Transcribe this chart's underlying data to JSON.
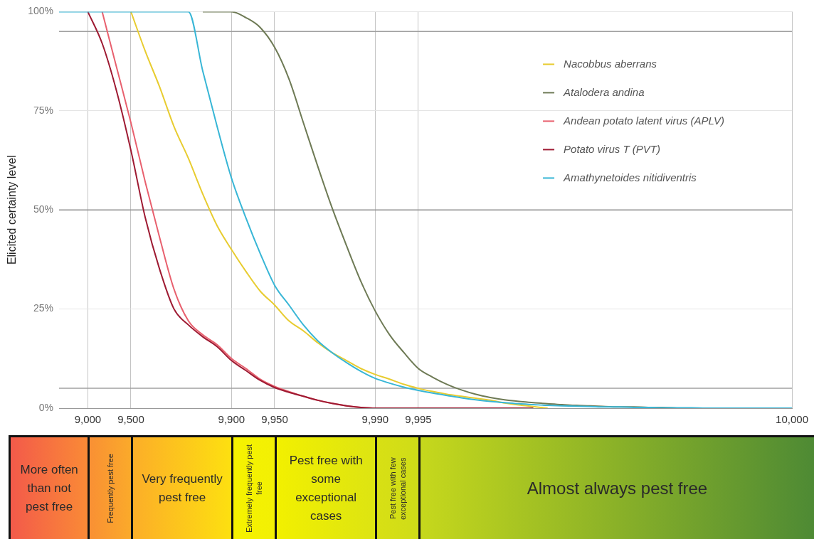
{
  "chart_data": {
    "type": "line",
    "ylabel": "Elicited certainty level",
    "categories": [
      null,
      null,
      "9,000",
      null,
      null,
      "9,500",
      null,
      null,
      null,
      null,
      null,
      null,
      "9,900",
      null,
      null,
      "9,950",
      null,
      null,
      null,
      null,
      null,
      null,
      "9,990",
      null,
      null,
      "9,995",
      null,
      null,
      null,
      null,
      null,
      null,
      null,
      null,
      null,
      null,
      null,
      null,
      null,
      null,
      null,
      null,
      null,
      null,
      null,
      null,
      null,
      null,
      null,
      null,
      null,
      "10,000"
    ],
    "ylim": [
      0,
      100
    ],
    "yticks": [
      {
        "value": 0,
        "label": "0%"
      },
      {
        "value": 25,
        "label": "25%"
      },
      {
        "value": 50,
        "label": "50%"
      },
      {
        "value": 75,
        "label": "75%"
      },
      {
        "value": 100,
        "label": "100%"
      }
    ],
    "grid": true,
    "legend": "top right",
    "marker": "none",
    "line_style": "solid",
    "ref_lines": [
      {
        "axis": "y",
        "value": 95,
        "color": "#a0a0a0"
      },
      {
        "axis": "y",
        "value": 50,
        "color": "#909090"
      },
      {
        "axis": "y",
        "value": 5,
        "color": "#a0a0a0"
      }
    ],
    "annotations": [
      "More often than not pest free",
      "Frequently pest free",
      "Very frequently pest free",
      "Extremely frequently pest free",
      "Pest free with some exceptional cases",
      "Pest free with few exceptional cases",
      "Almost always pest free"
    ],
    "series": [
      {
        "name": "Nacobbus aberrans",
        "color": "#e8cc30",
        "values": [
          null,
          null,
          null,
          null,
          null,
          100,
          90,
          81,
          71,
          63,
          54,
          46,
          40,
          34.5,
          29.5,
          26,
          22,
          19.5,
          16.5,
          14,
          12,
          10,
          8.5,
          7.3,
          6,
          5,
          4.2,
          3.5,
          3,
          2.5,
          2,
          1.3,
          0.8,
          0.4,
          0,
          null,
          null,
          null,
          null,
          null,
          null,
          null,
          null,
          null,
          null,
          null,
          null,
          null,
          null,
          null,
          null,
          null
        ]
      },
      {
        "name": "Atalodera andina",
        "color": "#6e7a55",
        "values": [
          null,
          null,
          null,
          null,
          null,
          null,
          null,
          null,
          null,
          null,
          100,
          100,
          100,
          98.5,
          96,
          91,
          83,
          72,
          61,
          50.5,
          41,
          32,
          24.5,
          18.5,
          14,
          10,
          7.8,
          6,
          4.6,
          3.5,
          2.7,
          2.1,
          1.7,
          1.4,
          1.1,
          0.9,
          0.7,
          0.6,
          0.4,
          0.3,
          0.3,
          0.2,
          0.2,
          0,
          null,
          null,
          null,
          null,
          null,
          null,
          null,
          null
        ]
      },
      {
        "name": "Andean potato latent virus (APLV)",
        "color": "#e8606e",
        "values": [
          null,
          null,
          null,
          100,
          86,
          72,
          57,
          43,
          30,
          22,
          18.5,
          16,
          12.5,
          10,
          7.3,
          5.5,
          4.2,
          3,
          2,
          1.2,
          0.6,
          0.2,
          0,
          null,
          null,
          null,
          null,
          null,
          null,
          null,
          null,
          null,
          null,
          null,
          null,
          null,
          null,
          null,
          null,
          null,
          null,
          null,
          null,
          null,
          null,
          null,
          null,
          null,
          null,
          null,
          null,
          null
        ]
      },
      {
        "name": "Potato virus T (PVT)",
        "color": "#9e1a32",
        "values": [
          null,
          null,
          100,
          92,
          80,
          65,
          48,
          35,
          25,
          21,
          18,
          15.5,
          12,
          9.5,
          7,
          5.2,
          4,
          3,
          2,
          1.2,
          0.6,
          0.2,
          0,
          0,
          0,
          0,
          0,
          0,
          0,
          0,
          0,
          0,
          0,
          0,
          null,
          null,
          null,
          null,
          null,
          null,
          null,
          null,
          null,
          null,
          null,
          null,
          null,
          null,
          null,
          null,
          null,
          null
        ]
      },
      {
        "name": "Amathynetoides nitidiventris",
        "color": "#38b6d6",
        "values": [
          100,
          100,
          100,
          100,
          100,
          100,
          100,
          100,
          100,
          100,
          85,
          71,
          58,
          48,
          39,
          31,
          26,
          21,
          17,
          14,
          11.5,
          9.3,
          7.5,
          6.3,
          5.3,
          4.5,
          3.8,
          3.2,
          2.6,
          2.1,
          1.7,
          1.4,
          1.1,
          0.9,
          0.7,
          0.6,
          0.5,
          0.4,
          0.3,
          0.3,
          0.2,
          0.2,
          0.1,
          0.1,
          0.1,
          0,
          0,
          0,
          0,
          0,
          0,
          0
        ]
      }
    ]
  }
}
